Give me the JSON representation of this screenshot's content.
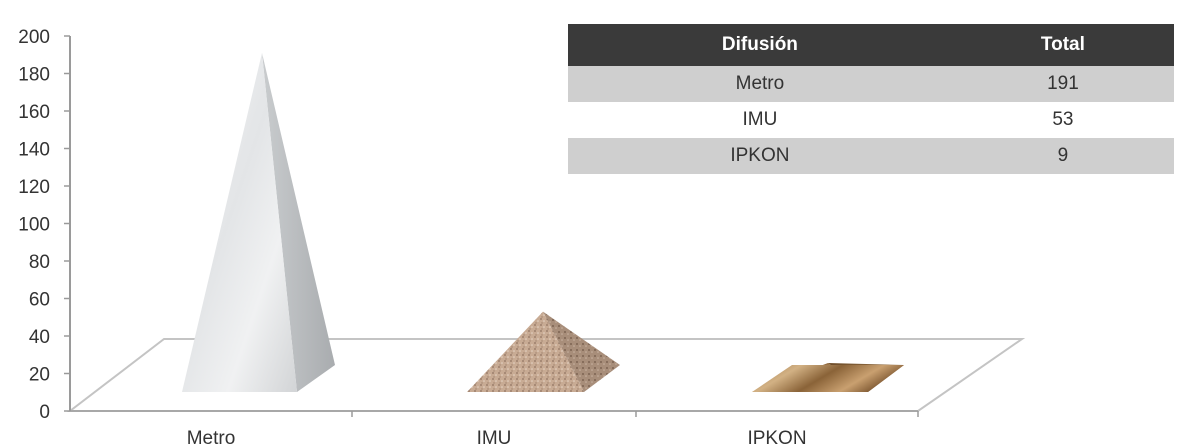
{
  "chart_data": {
    "type": "bar",
    "style": "3d-pyramid",
    "categories": [
      "Metro",
      "IMU",
      "IPKON"
    ],
    "values": [
      191,
      53,
      9
    ],
    "title": "",
    "xlabel": "",
    "ylabel": "",
    "ylim": [
      0,
      200
    ],
    "yticks": [
      0,
      20,
      40,
      60,
      80,
      100,
      120,
      140,
      160,
      180,
      200
    ],
    "grid": false,
    "legend": "none",
    "textures": [
      "marble-white",
      "granite-tan",
      "wood-brown"
    ]
  },
  "table": {
    "headers": [
      "Difusión",
      "Total"
    ],
    "rows": [
      [
        "Metro",
        "191"
      ],
      [
        "IMU",
        "53"
      ],
      [
        "IPKON",
        "9"
      ]
    ]
  },
  "colors": {
    "table_header_bg": "#3a3a3a",
    "table_shade": "#cfcfcf",
    "axis": "#9a9a9a"
  }
}
